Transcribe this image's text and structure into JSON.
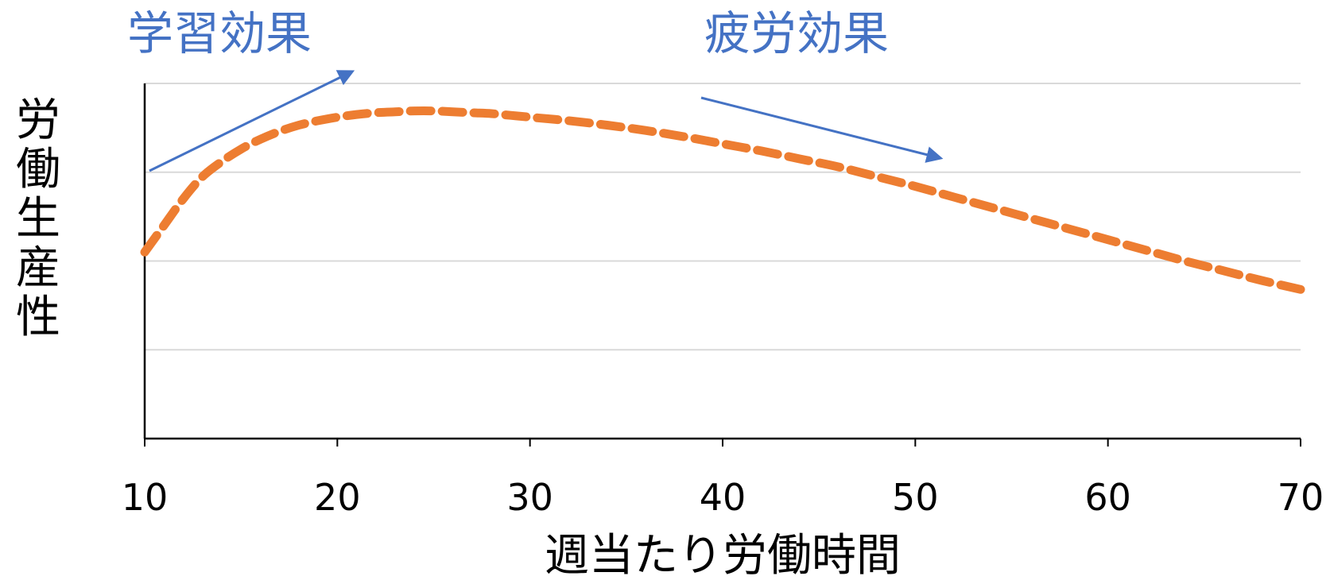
{
  "chart_data": {
    "type": "line",
    "xlabel": "週当たり労働時間",
    "ylabel": "労働生産性",
    "xlim": [
      10,
      70
    ],
    "ylim": [
      0,
      4
    ],
    "x_ticks": [
      "10",
      "20",
      "30",
      "40",
      "50",
      "60",
      "70"
    ],
    "y_tick_labels_shown": false,
    "grid": "horizontal",
    "series": [
      {
        "style": "dashed",
        "color": "#ED7D31",
        "x": [
          10,
          11,
          12,
          13,
          14,
          15,
          16,
          17,
          18,
          19,
          20,
          21,
          22,
          23,
          24,
          25,
          26,
          27,
          28,
          29,
          30,
          32,
          34,
          36,
          38,
          40,
          42,
          44,
          46,
          48,
          50,
          52,
          54,
          56,
          58,
          60,
          62,
          64,
          66,
          68,
          70
        ],
        "y": [
          2.1,
          2.4,
          2.7,
          2.95,
          3.12,
          3.26,
          3.37,
          3.46,
          3.53,
          3.58,
          3.62,
          3.65,
          3.67,
          3.68,
          3.69,
          3.69,
          3.68,
          3.67,
          3.66,
          3.64,
          3.62,
          3.58,
          3.53,
          3.47,
          3.4,
          3.32,
          3.24,
          3.15,
          3.06,
          2.95,
          2.84,
          2.72,
          2.6,
          2.48,
          2.36,
          2.24,
          2.12,
          2.0,
          1.89,
          1.78,
          1.68
        ]
      }
    ],
    "annotations": [
      {
        "text": "学習効果",
        "color": "#4472C4",
        "arrow": "up-right"
      },
      {
        "text": "疲労効果",
        "color": "#4472C4",
        "arrow": "down-right"
      }
    ]
  }
}
